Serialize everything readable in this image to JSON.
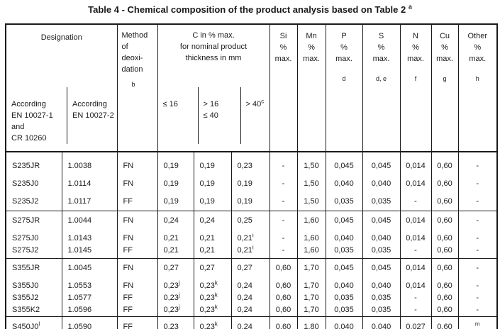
{
  "colors": {
    "ink": "#1a1a1a",
    "paper": "#ffffff"
  },
  "title": {
    "text": "Table 4 - Chemical composition of the product analysis based on Table 2 ",
    "footnote": "a"
  },
  "header": {
    "designation": {
      "label": "Designation",
      "sub1": "According\nEN 10027-1\nand\nCR 10260",
      "sub2": "According\nEN 10027-2"
    },
    "method": {
      "label": "Method\nof\ndeoxi-\ndation",
      "footnote": "b"
    },
    "carbon": {
      "label": "C in % max.\nfor nominal product\nthickness in mm",
      "sub1": "≤ 16",
      "sub2": "> 16\n≤ 40",
      "sub3": "> 40",
      "sub3_sup": "c"
    },
    "elements": [
      {
        "text": "Si\n%\nmax.",
        "footnote": ""
      },
      {
        "text": "Mn\n%\nmax.",
        "footnote": ""
      },
      {
        "text": "P\n%\nmax.",
        "footnote": "d"
      },
      {
        "text": "S\n%\nmax.",
        "footnote": "d, e"
      },
      {
        "text": "N\n%\nmax.",
        "footnote": "f"
      },
      {
        "text": "Cu\n%\nmax.",
        "footnote": "g"
      },
      {
        "text": "Other\n%\nmax.",
        "footnote": "h"
      }
    ]
  },
  "blocks": [
    {
      "gap_after_first": false,
      "rows": [
        [
          "S235JR",
          "1.0038",
          "FN",
          "0,19",
          "0,19",
          "0,23",
          "-",
          "1,50",
          "0,045",
          "0,045",
          "0,014",
          "0,60",
          "-"
        ],
        [
          "S235J0",
          "1.0114",
          "FN",
          "0,19",
          "0,19",
          "0,19",
          "-",
          "1,50",
          "0,040",
          "0,040",
          "0,014",
          "0,60",
          "-"
        ],
        [
          "S235J2",
          "1.0117",
          "FF",
          "0,19",
          "0,19",
          "0,19",
          "-",
          "1,50",
          "0,035",
          "0,035",
          "-",
          "0,60",
          "-"
        ]
      ]
    },
    {
      "gap_after_first": true,
      "rows": [
        [
          "S275JR",
          "1.0044",
          "FN",
          "0,24",
          "0,24",
          "0,25",
          "-",
          "1,60",
          "0,045",
          "0,045",
          "0,014",
          "0,60",
          "-"
        ],
        [
          "S275J0",
          "1.0143",
          "FN",
          "0,21",
          "0,21",
          "0,21^i",
          "-",
          "1,60",
          "0,040",
          "0,040",
          "0,014",
          "0,60",
          "-"
        ],
        [
          "S275J2",
          "1.0145",
          "FF",
          "0,21",
          "0,21",
          "0,21^i",
          "-",
          "1,60",
          "0,035",
          "0,035",
          "-",
          "0,60",
          "-"
        ]
      ]
    },
    {
      "gap_after_first": true,
      "rows": [
        [
          "S355JR",
          "1.0045",
          "FN",
          "0,27",
          "0,27",
          "0,27",
          "0,60",
          "1,70",
          "0,045",
          "0,045",
          "0,014",
          "0,60",
          "-"
        ],
        [
          "S355J0",
          "1.0553",
          "FN",
          "0,23^j",
          "0,23^k",
          "0,24",
          "0,60",
          "1,70",
          "0,040",
          "0,040",
          "0,014",
          "0,60",
          "-"
        ],
        [
          "S355J2",
          "1.0577",
          "FF",
          "0,23^j",
          "0,23^k",
          "0,24",
          "0,60",
          "1,70",
          "0,035",
          "0,035",
          "-",
          "0,60",
          "-"
        ],
        [
          "S355K2",
          "1.0596",
          "FF",
          "0,23^j",
          "0,23^k",
          "0,24",
          "0,60",
          "1,70",
          "0,035",
          "0,035",
          "-",
          "0,60",
          "-"
        ]
      ]
    },
    {
      "gap_after_first": false,
      "rows": [
        [
          "S450J0^l",
          "1.0590",
          "FF",
          "0,23",
          "0,23^k",
          "0,24",
          "0,60",
          "1,80",
          "0,040",
          "0,040",
          "0,027",
          "0,60",
          "^m"
        ]
      ]
    }
  ]
}
